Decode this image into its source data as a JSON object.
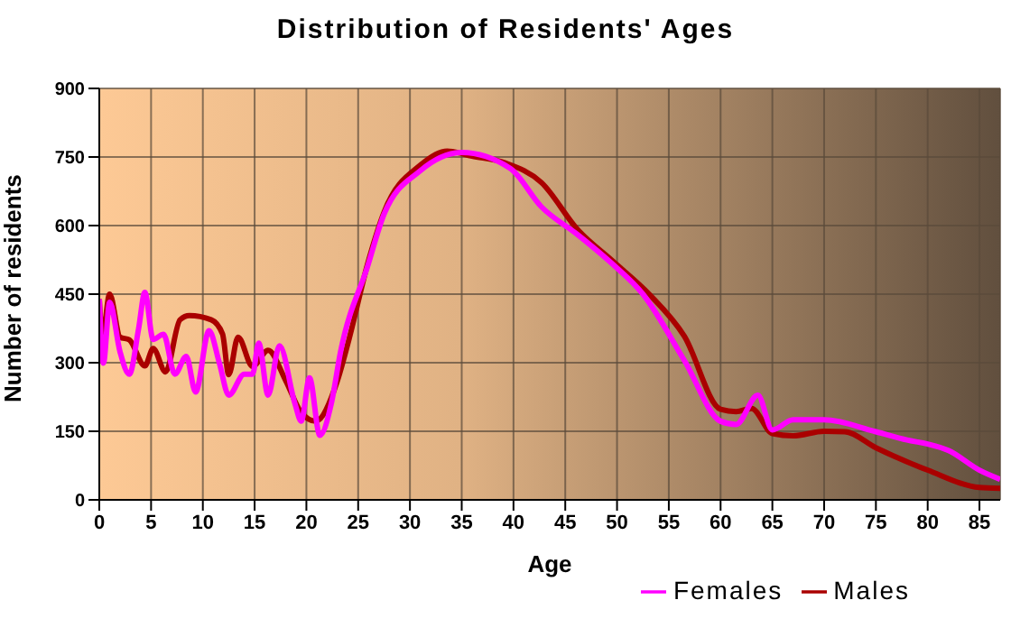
{
  "chart_data": {
    "type": "line",
    "title": "Distribution of Residents' Ages",
    "xlabel": "Age",
    "ylabel": "Number of residents",
    "xlim": [
      0,
      87
    ],
    "xticks": [
      0,
      5,
      10,
      15,
      20,
      25,
      30,
      35,
      40,
      45,
      50,
      55,
      60,
      65,
      70,
      75,
      80,
      85
    ],
    "ylim": [
      0,
      900
    ],
    "yticks": [
      0,
      150,
      300,
      450,
      600,
      750,
      900
    ],
    "grid": true,
    "legend": "bottom right",
    "marker": "none",
    "line_style": "solid",
    "series": [
      {
        "name": "Males",
        "color": "#aa0000",
        "x": [
          0,
          0.3,
          1,
          2,
          2.9,
          4.4,
          5.2,
          6.4,
          7.8,
          8.7,
          10.8,
          11.9,
          12.5,
          13.4,
          14.8,
          16.3,
          18,
          19.5,
          20.9,
          23,
          24.1,
          25.9,
          27.5,
          31,
          33.6,
          36,
          39.2,
          42.7,
          46.2,
          49.6,
          53.1,
          56.5,
          60,
          61.5,
          63,
          65,
          67,
          70,
          72,
          75,
          80,
          85,
          87
        ],
        "values": [
          439,
          356,
          450,
          356,
          350,
          293,
          331,
          280,
          394,
          403,
          394,
          363,
          274,
          356,
          292,
          327,
          261,
          191,
          172,
          261,
          350,
          515,
          629,
          732,
          763,
          752,
          737,
          694,
          591,
          522,
          450,
          358,
          198,
          193,
          200,
          145,
          140,
          150,
          149,
          114,
          65,
          27,
          25
        ]
      },
      {
        "name": "Females",
        "color": "#ff00ff",
        "x": [
          0,
          0.4,
          1,
          2,
          2.9,
          3.8,
          4.4,
          5.2,
          6.2,
          7.3,
          8.4,
          9.3,
          10.6,
          11.6,
          12.5,
          14,
          14.8,
          15.4,
          16.3,
          17.4,
          18.9,
          19.5,
          20.3,
          21.3,
          22.4,
          23.3,
          25.9,
          27.5,
          31,
          35,
          39.7,
          42.7,
          46.2,
          49.6,
          52.5,
          56.5,
          60,
          61.5,
          63.6,
          65,
          67,
          70,
          75,
          78,
          80,
          82,
          85,
          87
        ],
        "values": [
          439,
          299,
          432,
          324,
          275,
          375,
          454,
          351,
          362,
          275,
          314,
          236,
          370,
          299,
          229,
          275,
          275,
          343,
          229,
          337,
          210,
          172,
          267,
          141,
          210,
          324,
          510,
          625,
          720,
          760,
          725,
          641,
          580,
          515,
          450,
          305,
          172,
          165,
          229,
          153,
          175,
          175,
          149,
          131,
          122,
          108,
          65,
          45
        ]
      }
    ]
  }
}
